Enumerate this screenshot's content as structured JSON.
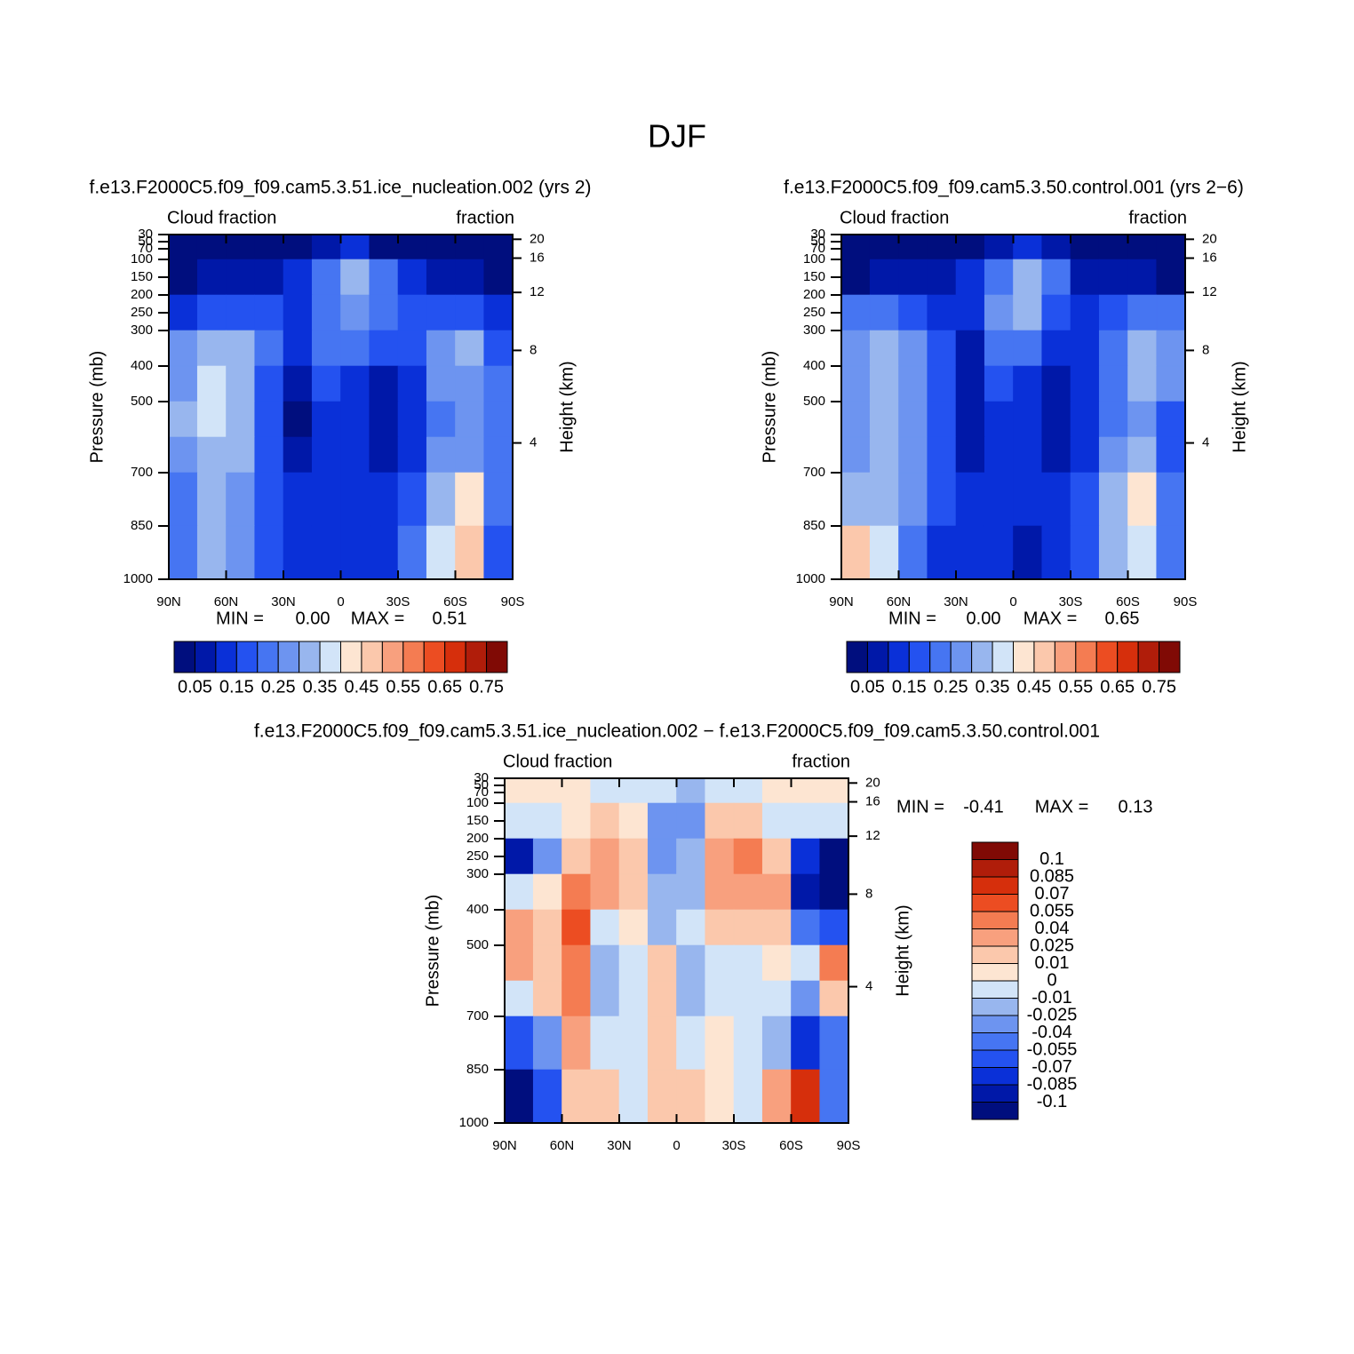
{
  "figure": {
    "title": "DJF"
  },
  "chart_data": [
    {
      "type": "contour",
      "title": "f.e13.F2000C5.f09_f09.cam5.3.51.ice_nucleation.002 (yrs 2)",
      "left_label": "Cloud fraction",
      "right_label": "fraction",
      "ylabel": "Pressure (mb)",
      "y2label": "Height (km)",
      "xlim": [
        90,
        -90
      ],
      "xticks": [
        {
          "value": 90,
          "label": "90N"
        },
        {
          "value": 60,
          "label": "60N"
        },
        {
          "value": 30,
          "label": "30N"
        },
        0,
        {
          "value": -30,
          "label": "30S"
        },
        {
          "value": -60,
          "label": "60S"
        },
        {
          "value": -90,
          "label": "90S"
        }
      ],
      "ylim": [
        1000,
        30
      ],
      "yticks": [
        30,
        50,
        70,
        100,
        150,
        200,
        250,
        300,
        400,
        500,
        700,
        850,
        1000
      ],
      "y2ticks": [
        20,
        16,
        12,
        8,
        4
      ],
      "lat_edges": [
        90,
        75,
        60,
        45,
        30,
        15,
        0,
        -15,
        -30,
        -45,
        -60,
        -75,
        -90
      ],
      "p_edges": [
        30,
        100,
        200,
        300,
        400,
        500,
        600,
        700,
        850,
        1000
      ],
      "z": [
        [
          0.02,
          0.02,
          0.02,
          0.02,
          0.03,
          0.08,
          0.1,
          0.04,
          0.02,
          0.02,
          0.02,
          0.02
        ],
        [
          0.03,
          0.05,
          0.05,
          0.06,
          0.1,
          0.2,
          0.3,
          0.2,
          0.1,
          0.08,
          0.05,
          0.03
        ],
        [
          0.13,
          0.15,
          0.17,
          0.15,
          0.1,
          0.22,
          0.28,
          0.2,
          0.15,
          0.18,
          0.15,
          0.1
        ],
        [
          0.25,
          0.3,
          0.3,
          0.2,
          0.1,
          0.2,
          0.2,
          0.15,
          0.17,
          0.25,
          0.3,
          0.18
        ],
        [
          0.28,
          0.36,
          0.33,
          0.18,
          0.05,
          0.15,
          0.12,
          0.08,
          0.12,
          0.25,
          0.28,
          0.2
        ],
        [
          0.3,
          0.36,
          0.32,
          0.17,
          0.04,
          0.12,
          0.1,
          0.07,
          0.1,
          0.22,
          0.25,
          0.2
        ],
        [
          0.25,
          0.33,
          0.3,
          0.15,
          0.05,
          0.13,
          0.1,
          0.08,
          0.12,
          0.25,
          0.28,
          0.2
        ],
        [
          0.22,
          0.3,
          0.28,
          0.15,
          0.1,
          0.13,
          0.12,
          0.1,
          0.18,
          0.3,
          0.4,
          0.2
        ],
        [
          0.2,
          0.3,
          0.25,
          0.15,
          0.1,
          0.12,
          0.1,
          0.12,
          0.2,
          0.35,
          0.45,
          0.15
        ]
      ],
      "levels": [
        0.05,
        0.1,
        0.15,
        0.2,
        0.25,
        0.3,
        0.35,
        0.4,
        0.45,
        0.5,
        0.55,
        0.6,
        0.65,
        0.7,
        0.75
      ],
      "colors": [
        "#000e7e",
        "#0018a8",
        "#0a30d8",
        "#2452f0",
        "#4675f2",
        "#6d94f0",
        "#98b6ee",
        "#d2e4f8",
        "#fde5d2",
        "#fbc8ac",
        "#f8a07e",
        "#f47c52",
        "#ec4d22",
        "#d62f0c",
        "#b01d0a",
        "#800a05"
      ],
      "colorbar": {
        "orientation": "horizontal",
        "ticks": [
          0.05,
          0.15,
          0.25,
          0.35,
          0.45,
          0.55,
          0.65,
          0.75
        ]
      },
      "stats": {
        "min_text": "MIN =",
        "min": {
          "value": 0,
          "label": "0.00"
        },
        "max_text": "MAX =",
        "max": 0.51
      }
    },
    {
      "type": "contour",
      "title": "f.e13.F2000C5.f09_f09.cam5.3.50.control.001 (yrs 2−6)",
      "left_label": "Cloud fraction",
      "right_label": "fraction",
      "ylabel": "Pressure (mb)",
      "y2label": "Height (km)",
      "xlim": [
        90,
        -90
      ],
      "xticks": [
        {
          "value": 90,
          "label": "90N"
        },
        {
          "value": 60,
          "label": "60N"
        },
        {
          "value": 30,
          "label": "30N"
        },
        0,
        {
          "value": -30,
          "label": "30S"
        },
        {
          "value": -60,
          "label": "60S"
        },
        {
          "value": -90,
          "label": "90S"
        }
      ],
      "ylim": [
        1000,
        30
      ],
      "yticks": [
        30,
        50,
        70,
        100,
        150,
        200,
        250,
        300,
        400,
        500,
        700,
        850,
        1000
      ],
      "y2ticks": [
        20,
        16,
        12,
        8,
        4
      ],
      "lat_edges": [
        90,
        75,
        60,
        45,
        30,
        15,
        0,
        -15,
        -30,
        -45,
        -60,
        -75,
        -90
      ],
      "p_edges": [
        30,
        100,
        200,
        300,
        400,
        500,
        600,
        700,
        850,
        1000
      ],
      "z": [
        [
          0.02,
          0.02,
          0.02,
          0.02,
          0.03,
          0.08,
          0.12,
          0.05,
          0.02,
          0.02,
          0.02,
          0.02
        ],
        [
          0.04,
          0.05,
          0.05,
          0.05,
          0.1,
          0.22,
          0.32,
          0.2,
          0.09,
          0.08,
          0.05,
          0.03
        ],
        [
          0.2,
          0.2,
          0.15,
          0.13,
          0.1,
          0.25,
          0.3,
          0.18,
          0.12,
          0.17,
          0.22,
          0.2
        ],
        [
          0.26,
          0.3,
          0.26,
          0.17,
          0.08,
          0.22,
          0.22,
          0.12,
          0.14,
          0.22,
          0.32,
          0.25
        ],
        [
          0.25,
          0.33,
          0.28,
          0.19,
          0.05,
          0.17,
          0.13,
          0.07,
          0.11,
          0.24,
          0.3,
          0.25
        ],
        [
          0.28,
          0.34,
          0.28,
          0.19,
          0.05,
          0.11,
          0.12,
          0.08,
          0.11,
          0.22,
          0.26,
          0.15
        ],
        [
          0.27,
          0.32,
          0.26,
          0.17,
          0.06,
          0.12,
          0.12,
          0.09,
          0.13,
          0.26,
          0.32,
          0.18
        ],
        [
          0.3,
          0.34,
          0.25,
          0.16,
          0.1,
          0.12,
          0.13,
          0.1,
          0.19,
          0.32,
          0.42,
          0.22
        ],
        [
          0.45,
          0.37,
          0.23,
          0.14,
          0.1,
          0.11,
          0.09,
          0.12,
          0.19,
          0.32,
          0.38,
          0.2
        ]
      ],
      "levels": [
        0.05,
        0.1,
        0.15,
        0.2,
        0.25,
        0.3,
        0.35,
        0.4,
        0.45,
        0.5,
        0.55,
        0.6,
        0.65,
        0.7,
        0.75
      ],
      "colors": [
        "#000e7e",
        "#0018a8",
        "#0a30d8",
        "#2452f0",
        "#4675f2",
        "#6d94f0",
        "#98b6ee",
        "#d2e4f8",
        "#fde5d2",
        "#fbc8ac",
        "#f8a07e",
        "#f47c52",
        "#ec4d22",
        "#d62f0c",
        "#b01d0a",
        "#800a05"
      ],
      "colorbar": {
        "orientation": "horizontal",
        "ticks": [
          0.05,
          0.15,
          0.25,
          0.35,
          0.45,
          0.55,
          0.65,
          0.75
        ]
      },
      "stats": {
        "min_text": "MIN =",
        "min": {
          "value": 0,
          "label": "0.00"
        },
        "max_text": "MAX =",
        "max": 0.65
      }
    },
    {
      "type": "contour",
      "title": "f.e13.F2000C5.f09_f09.cam5.3.51.ice_nucleation.002 − f.e13.F2000C5.f09_f09.cam5.3.50.control.001",
      "left_label": "Cloud fraction",
      "right_label": "fraction",
      "ylabel": "Pressure (mb)",
      "y2label": "Height (km)",
      "xlim": [
        90,
        -90
      ],
      "xticks": [
        {
          "value": 90,
          "label": "90N"
        },
        {
          "value": 60,
          "label": "60N"
        },
        {
          "value": 30,
          "label": "30N"
        },
        0,
        {
          "value": -30,
          "label": "30S"
        },
        {
          "value": -60,
          "label": "60S"
        },
        {
          "value": -90,
          "label": "90S"
        }
      ],
      "ylim": [
        1000,
        30
      ],
      "yticks": [
        30,
        50,
        70,
        100,
        150,
        200,
        250,
        300,
        400,
        500,
        700,
        850,
        1000
      ],
      "y2ticks": [
        20,
        16,
        12,
        8,
        4
      ],
      "lat_edges": [
        90,
        75,
        60,
        45,
        30,
        15,
        0,
        -15,
        -30,
        -45,
        -60,
        -75,
        -90
      ],
      "p_edges": [
        30,
        100,
        200,
        300,
        400,
        500,
        600,
        700,
        850,
        1000
      ],
      "z": [
        [
          0.005,
          0.005,
          0.005,
          -0.005,
          -0.005,
          -0.01,
          -0.02,
          -0.005,
          -0.005,
          0.005,
          0.005,
          0.005
        ],
        [
          -0.005,
          -0.005,
          0.005,
          0.01,
          0.005,
          -0.03,
          -0.04,
          0.01,
          0.01,
          -0.005,
          -0.005,
          -0.005
        ],
        [
          -0.09,
          -0.03,
          0.02,
          0.03,
          0.01,
          -0.03,
          -0.02,
          0.03,
          0.04,
          0.01,
          -0.08,
          -0.11
        ],
        [
          -0.01,
          0.005,
          0.045,
          0.03,
          0.02,
          -0.02,
          -0.02,
          0.03,
          0.035,
          0.03,
          -0.1,
          -0.11
        ],
        [
          0.03,
          0.02,
          0.06,
          -0.01,
          0.005,
          -0.02,
          -0.01,
          0.01,
          0.01,
          0.01,
          -0.05,
          -0.06
        ],
        [
          0.03,
          0.02,
          0.05,
          -0.02,
          -0.01,
          0.01,
          -0.02,
          -0.005,
          -0.01,
          0.005,
          -0.01,
          0.04
        ],
        [
          -0.01,
          0.01,
          0.04,
          -0.02,
          -0.01,
          0.01,
          -0.02,
          -0.005,
          -0.01,
          -0.01,
          -0.04,
          0.02
        ],
        [
          -0.06,
          -0.04,
          0.03,
          -0.01,
          -0.005,
          0.01,
          -0.01,
          0.005,
          -0.01,
          -0.02,
          -0.08,
          -0.05
        ],
        [
          -0.11,
          -0.07,
          0.02,
          0.01,
          -0.005,
          0.01,
          0.01,
          0.005,
          -0.01,
          0.03,
          0.07,
          -0.05
        ]
      ],
      "levels": [
        -0.1,
        -0.085,
        -0.07,
        -0.055,
        -0.04,
        -0.025,
        -0.01,
        0,
        0.01,
        0.025,
        0.04,
        0.055,
        0.07,
        0.085,
        0.1
      ],
      "colors": [
        "#000e7e",
        "#0018a8",
        "#0a30d8",
        "#2452f0",
        "#4675f2",
        "#6d94f0",
        "#98b6ee",
        "#d2e4f8",
        "#fde5d2",
        "#fbc8ac",
        "#f8a07e",
        "#f47c52",
        "#ec4d22",
        "#d62f0c",
        "#b01d0a",
        "#800a05"
      ],
      "colorbar": {
        "orientation": "vertical",
        "ticks": [
          -0.1,
          -0.085,
          -0.07,
          -0.055,
          -0.04,
          -0.025,
          -0.01,
          0,
          0.01,
          0.025,
          0.04,
          0.055,
          0.07,
          0.085,
          0.1
        ]
      },
      "stats": {
        "min_text": "MIN =",
        "min": -0.41,
        "max_text": "MAX =",
        "max": 0.13
      }
    }
  ]
}
